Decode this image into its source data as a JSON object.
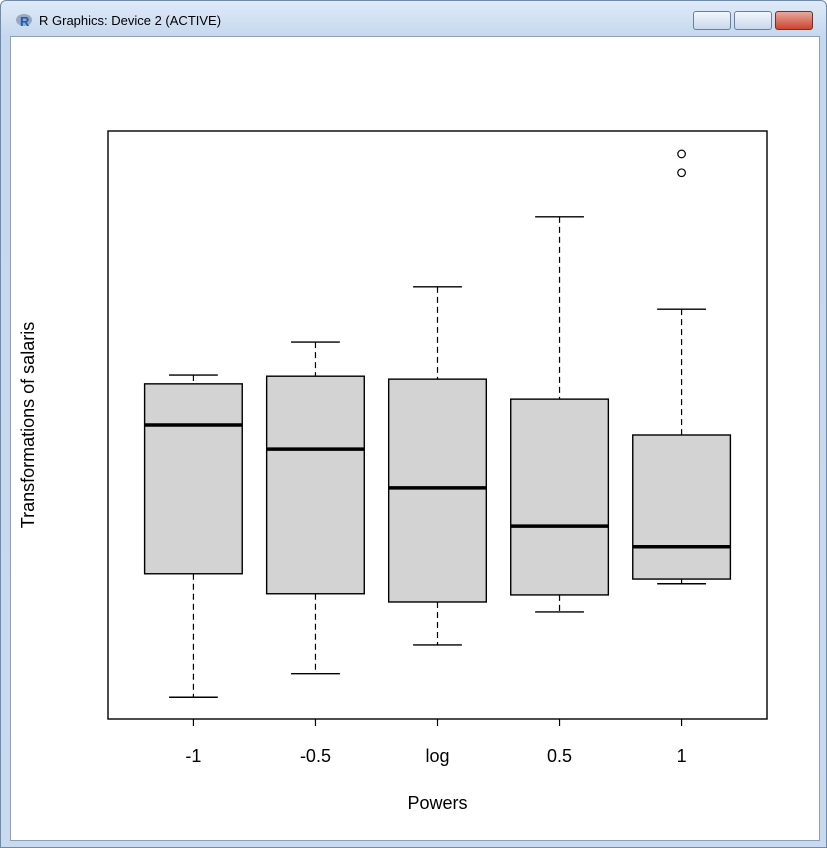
{
  "window": {
    "title": "R Graphics: Device 2 (ACTIVE)"
  },
  "chart_data": {
    "type": "box",
    "xlabel": "Powers",
    "ylabel": "Transformations of salaris",
    "categories": [
      "-1",
      "-0.5",
      "log",
      "0.5",
      "1"
    ],
    "boxes": [
      {
        "min": 3.7,
        "q1": 24.7,
        "median": 50.0,
        "q3": 57.0,
        "max": 58.5,
        "outliers": []
      },
      {
        "min": 7.7,
        "q1": 21.3,
        "median": 45.9,
        "q3": 58.3,
        "max": 64.1,
        "outliers": []
      },
      {
        "min": 12.6,
        "q1": 19.9,
        "median": 39.3,
        "q3": 57.8,
        "max": 73.5,
        "outliers": []
      },
      {
        "min": 18.2,
        "q1": 21.1,
        "median": 32.8,
        "q3": 54.4,
        "max": 85.4,
        "outliers": []
      },
      {
        "min": 23.0,
        "q1": 23.8,
        "median": 29.3,
        "q3": 48.3,
        "max": 69.7,
        "outliers": [
          92.9,
          96.1
        ]
      }
    ],
    "color": "#d3d3d3",
    "ylim": [
      0,
      100
    ]
  }
}
